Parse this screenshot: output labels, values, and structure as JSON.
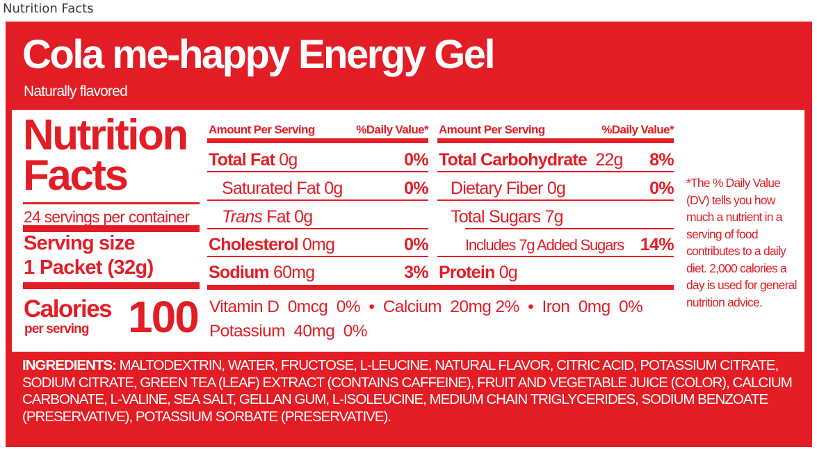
{
  "caption": "Nutrition Facts",
  "colors": {
    "brand_red": "#e21d25",
    "background": "#ffffff"
  },
  "product": {
    "name": "Cola me-happy Energy Gel",
    "flavor": "Naturally flavored"
  },
  "facts": {
    "heading_line1": "Nutrition",
    "heading_line2": "Facts",
    "servings_per_container": "24 servings per container",
    "serving_size_label": "Serving size",
    "serving_size_value": "1 Packet (32g)",
    "calories_label": "Calories",
    "calories_sublabel": "per serving",
    "calories_value": "100"
  },
  "left_table": {
    "header_amount": "Amount Per Serving",
    "header_dv": "%Daily Value*",
    "rows": [
      {
        "name": "Total Fat",
        "amount": "0g",
        "dv": "0%"
      },
      {
        "name": "Saturated Fat",
        "amount": "0g",
        "dv": "0%"
      },
      {
        "name_italic": "Trans",
        "name": "Fat",
        "amount": "0g",
        "dv": ""
      },
      {
        "name": "Cholesterol",
        "amount": "0mg",
        "dv": "0%"
      },
      {
        "name": "Sodium",
        "amount": "60mg",
        "dv": "3%"
      }
    ]
  },
  "right_table": {
    "header_amount": "Amount Per Serving",
    "header_dv": "%Daily Value*",
    "rows": [
      {
        "name": "Total Carbohydrate",
        "amount": "22g",
        "dv": "8%"
      },
      {
        "name": "Dietary Fiber",
        "amount": "0g",
        "dv": "0%"
      },
      {
        "name": "Total Sugars",
        "amount": "7g",
        "dv": ""
      },
      {
        "name": "Includes 7g Added Sugars",
        "amount": "",
        "dv": "14%"
      },
      {
        "name": "Protein",
        "amount": "0g",
        "dv": ""
      }
    ]
  },
  "micronutrients": {
    "line1": "Vitamin D  0mcg  0%  •  Calcium  20mg 2%  •  Iron  0mg  0%",
    "line2": "Potassium  40mg  0%"
  },
  "footnote": "*The % Daily Value (DV) tells you how much a nutrient in a serving of food contributes to a daily diet. 2,000 calories a day is used for general nutrition advice.",
  "ingredients": {
    "label": "INGREDIENTS:",
    "text": "MALTODEXTRIN, WATER, FRUCTOSE, L-LEUCINE, NATURAL FLAVOR, CITRIC ACID, POTASSIUM CITRATE, SODIUM CITRATE, GREEN TEA (LEAF) EXTRACT (CONTAINS CAFFEINE), FRUIT AND VEGETABLE JUICE (COLOR), CALCIUM CARBONATE, L-VALINE, SEA SALT, GELLAN GUM, L-ISOLEUCINE, MEDIUM CHAIN TRIGLYCERIDES, SODIUM BENZOATE (PRESERVATIVE), POTASSIUM SORBATE (PRESERVATIVE)."
  }
}
